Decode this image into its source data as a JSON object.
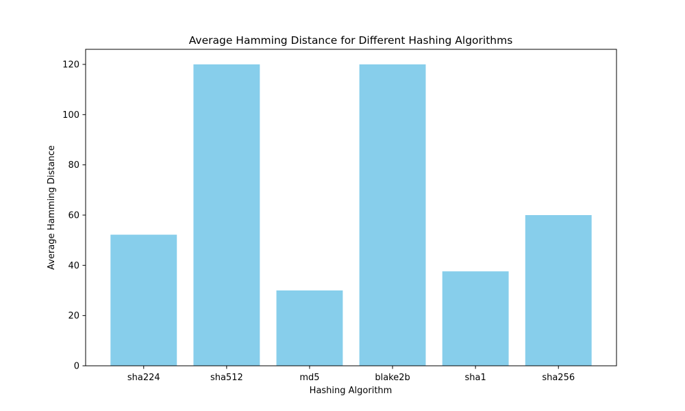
{
  "chart_data": {
    "type": "bar",
    "title": "Average Hamming Distance for Different Hashing Algorithms",
    "xlabel": "Hashing Algorithm",
    "ylabel": "Average Hamming Distance",
    "categories": [
      "sha224",
      "sha512",
      "md5",
      "blake2b",
      "sha1",
      "sha256"
    ],
    "values": [
      52.2,
      120,
      30,
      120,
      37.6,
      60
    ],
    "ylim": [
      0,
      126
    ],
    "yticks": [
      0,
      20,
      40,
      60,
      80,
      100,
      120
    ],
    "bar_color": "#87CEEB",
    "grid": false,
    "legend": "none"
  }
}
